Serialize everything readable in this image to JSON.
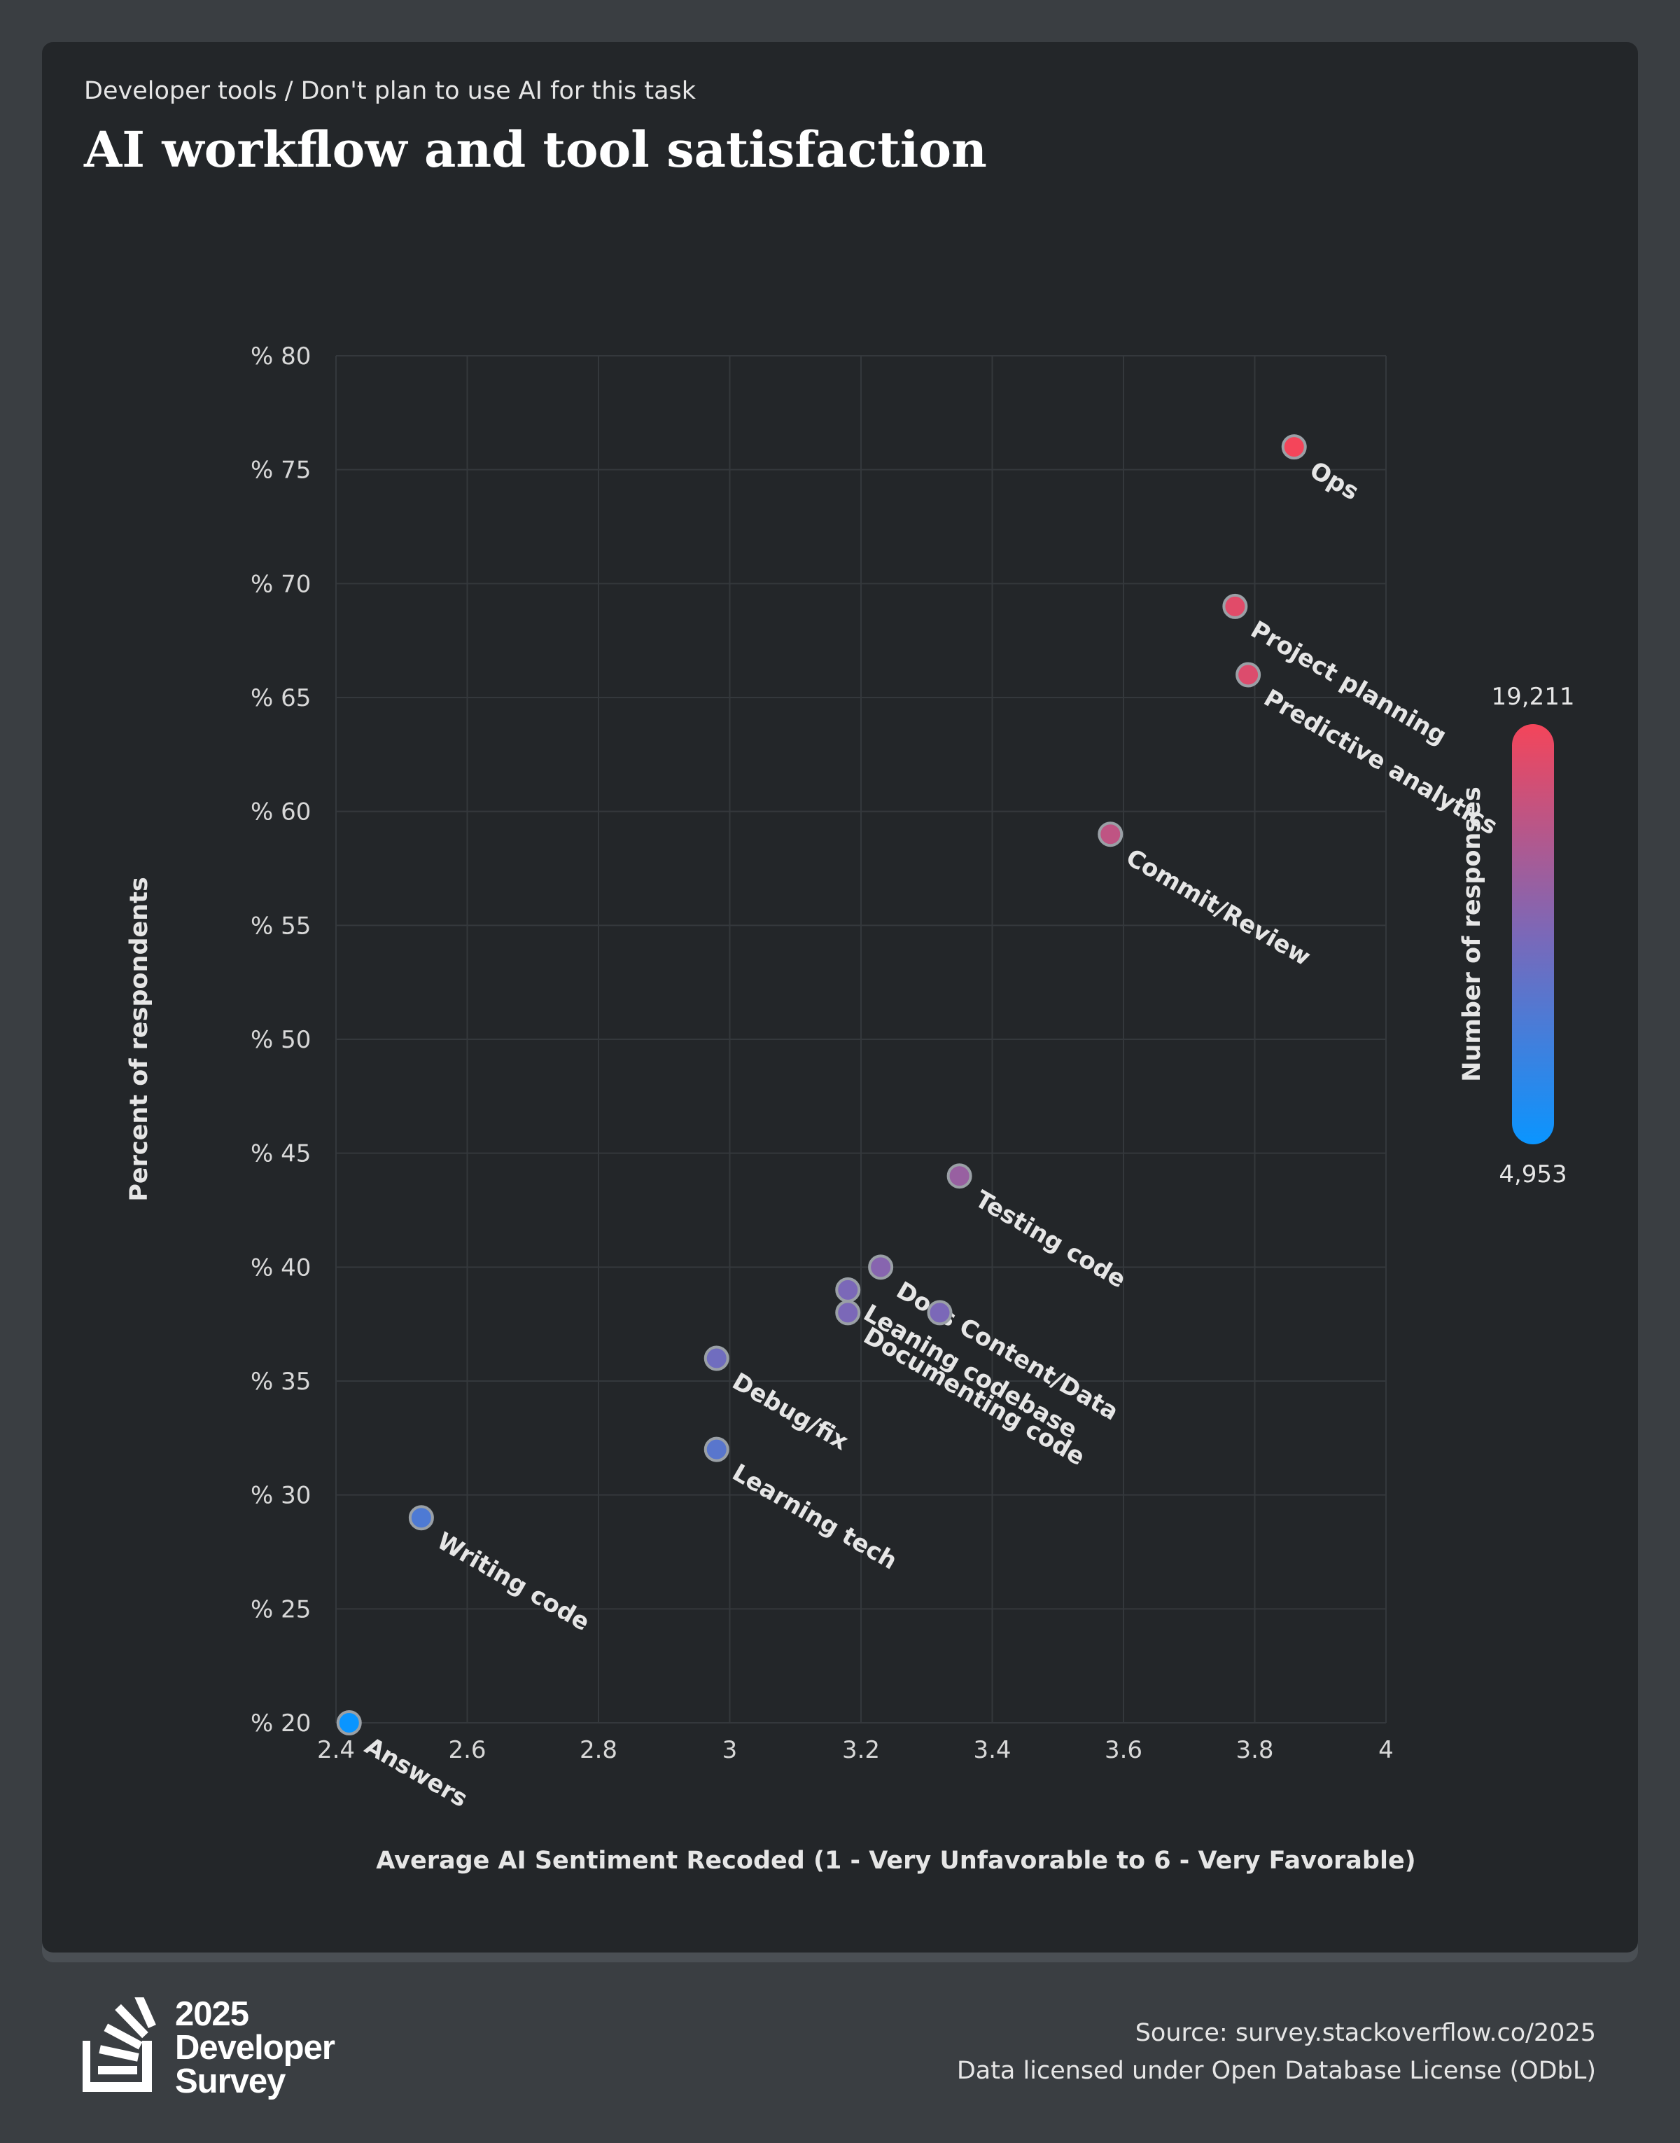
{
  "header": {
    "subtitle": "Developer tools / Don't plan to use AI for this task",
    "title": "AI workflow and tool satisfaction"
  },
  "chart_data": {
    "type": "scatter",
    "xlabel": "Average AI Sentiment Recoded (1 - Very Unfavorable to 6 - Very Favorable)",
    "ylabel": "Percent of respondents",
    "xlim": [
      2.4,
      4
    ],
    "ylim": [
      20,
      80
    ],
    "xticks": [
      "2.4",
      "2.6",
      "2.8",
      "3",
      "3.2",
      "3.4",
      "3.6",
      "3.8",
      "4"
    ],
    "yticks": [
      "% 20",
      "% 25",
      "% 30",
      "% 35",
      "% 40",
      "% 45",
      "% 50",
      "% 55",
      "% 60",
      "% 65",
      "% 70",
      "% 75",
      "% 80"
    ],
    "grid": true,
    "color_scale": {
      "label": "Number of responses",
      "min_label": "4,953",
      "max_label": "19,211",
      "min_color": "#0a95ff",
      "mid_color": "#7b68b8",
      "max_color": "#f4455a"
    },
    "points": [
      {
        "label": "Ops",
        "x": 3.86,
        "y": 76,
        "c": 1.0
      },
      {
        "label": "Project planning",
        "x": 3.77,
        "y": 69,
        "c": 0.92
      },
      {
        "label": "Predictive analytics",
        "x": 3.79,
        "y": 66,
        "c": 0.9
      },
      {
        "label": "Commit/Review",
        "x": 3.58,
        "y": 59,
        "c": 0.78
      },
      {
        "label": "Testing code",
        "x": 3.35,
        "y": 44,
        "c": 0.62
      },
      {
        "label": "Docs Content/Data",
        "x": 3.23,
        "y": 40,
        "c": 0.55
      },
      {
        "label": "Leaning codebase",
        "x": 3.18,
        "y": 39,
        "c": 0.5
      },
      {
        "label": "Documenting code",
        "x": 3.18,
        "y": 38,
        "c": 0.5
      },
      {
        "label": "",
        "x": 3.32,
        "y": 38,
        "c": 0.5
      },
      {
        "label": "Debug/fix",
        "x": 2.98,
        "y": 36,
        "c": 0.45
      },
      {
        "label": "Learning tech",
        "x": 2.98,
        "y": 32,
        "c": 0.35
      },
      {
        "label": "Writing code",
        "x": 2.53,
        "y": 29,
        "c": 0.3
      },
      {
        "label": "Answers",
        "x": 2.42,
        "y": 20,
        "c": 0.0
      }
    ]
  },
  "footer": {
    "logo_line1": "2025",
    "logo_line2": "Developer",
    "logo_line3": "Survey",
    "source": "Source: survey.stackoverflow.co/2025",
    "license": "Data licensed under Open Database License (ODbL)"
  }
}
